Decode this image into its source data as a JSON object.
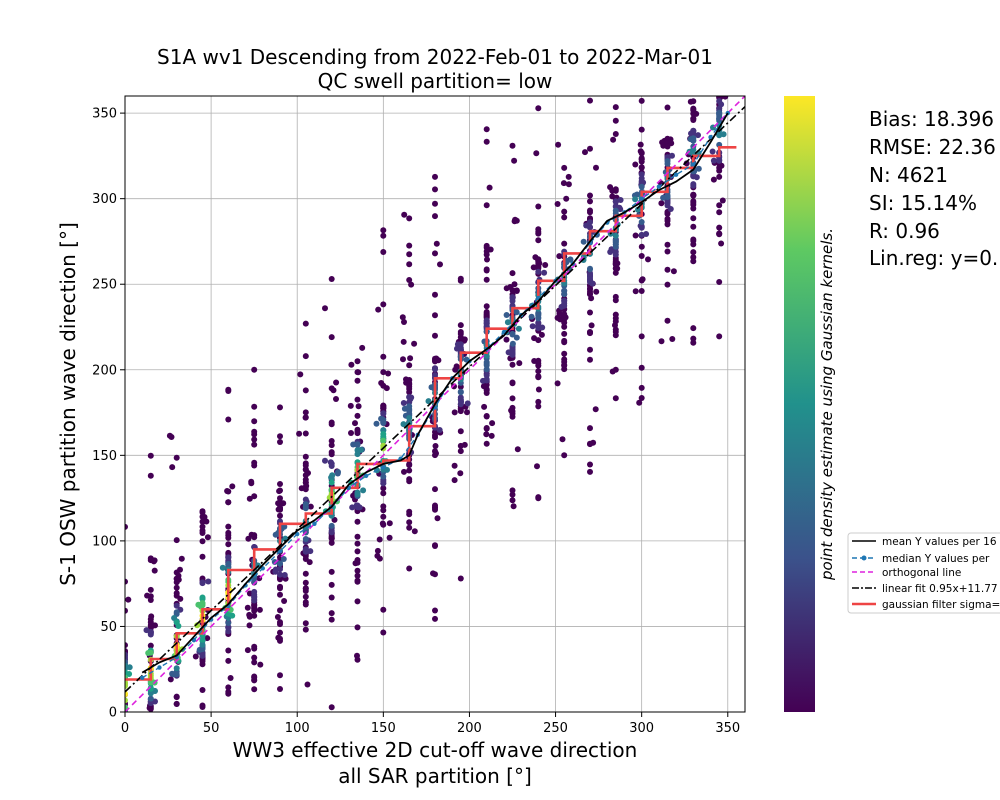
{
  "chart_data": {
    "type": "scatter",
    "title_line1": "S1A wv1 Descending from 2022-Feb-01 to 2022-Mar-01",
    "title_line2": "QC swell partition= low",
    "xlabel_line1": "WW3 effective 2D cut-off wave direction",
    "xlabel_line2": "all SAR partition [°]",
    "ylabel": "S-1 OSW partition wave direction [°]",
    "xlim": [
      0,
      360
    ],
    "ylim": [
      0,
      360
    ],
    "xticks": [
      "0",
      "50",
      "100",
      "150",
      "200",
      "250",
      "300",
      "350"
    ],
    "yticks": [
      "0",
      "50",
      "100",
      "150",
      "200",
      "250",
      "300",
      "350"
    ],
    "grid": true,
    "colorbar_label": "point density estimate using Gaussian kernels.",
    "colorbar_colors": [
      "#440154",
      "#3b528b",
      "#21918c",
      "#5ec962",
      "#fde725"
    ],
    "stats": [
      "Bias: 18.396",
      "RMSE: 22.36",
      "N: 4621",
      "SI: 15.14%",
      "R: 0.96",
      "Lin.reg: y=0."
    ],
    "legend": {
      "location": "lower-right outside",
      "entries": [
        {
          "label": "mean Y values per 16",
          "color": "#000000",
          "style": "solid"
        },
        {
          "label": "median Y values per",
          "color": "#1f77b4",
          "style": "dashed-dot-marker"
        },
        {
          "label": "orthogonal line",
          "color": "#dd22dd",
          "style": "dashed"
        },
        {
          "label": "linear fit 0.95x+11.77",
          "color": "#000000",
          "style": "dashdot"
        },
        {
          "label": "gaussian filter sigma=",
          "color": "#ee4444",
          "style": "solid-thick"
        }
      ]
    },
    "orthogonal_line": [
      [
        0,
        0
      ],
      [
        360,
        360
      ]
    ],
    "linear_fit": {
      "slope": 0.95,
      "intercept": 11.77
    },
    "mean_line": [
      [
        10,
        23
      ],
      [
        20,
        29
      ],
      [
        30,
        33
      ],
      [
        40,
        44
      ],
      [
        50,
        55
      ],
      [
        60,
        63
      ],
      [
        70,
        75
      ],
      [
        80,
        86
      ],
      [
        90,
        96
      ],
      [
        100,
        106
      ],
      [
        110,
        112
      ],
      [
        120,
        120
      ],
      [
        130,
        133
      ],
      [
        140,
        140
      ],
      [
        150,
        145
      ],
      [
        160,
        147
      ],
      [
        165,
        150
      ],
      [
        170,
        162
      ],
      [
        180,
        180
      ],
      [
        190,
        195
      ],
      [
        200,
        205
      ],
      [
        210,
        212
      ],
      [
        220,
        220
      ],
      [
        230,
        232
      ],
      [
        240,
        240
      ],
      [
        250,
        252
      ],
      [
        260,
        262
      ],
      [
        270,
        275
      ],
      [
        280,
        287
      ],
      [
        290,
        292
      ],
      [
        300,
        298
      ],
      [
        310,
        305
      ],
      [
        320,
        310
      ],
      [
        330,
        317
      ],
      [
        340,
        333
      ],
      [
        350,
        350
      ]
    ],
    "median_line": [
      [
        10,
        20
      ],
      [
        20,
        26
      ],
      [
        30,
        32
      ],
      [
        40,
        42
      ],
      [
        50,
        54
      ],
      [
        60,
        62
      ],
      [
        70,
        74
      ],
      [
        80,
        84
      ],
      [
        90,
        94
      ],
      [
        100,
        104
      ],
      [
        110,
        110
      ],
      [
        120,
        120
      ],
      [
        130,
        131
      ],
      [
        140,
        138
      ],
      [
        150,
        143
      ],
      [
        160,
        148
      ],
      [
        170,
        162
      ],
      [
        180,
        178
      ],
      [
        190,
        195
      ],
      [
        200,
        205
      ],
      [
        210,
        212
      ],
      [
        220,
        222
      ],
      [
        230,
        232
      ],
      [
        240,
        242
      ],
      [
        250,
        252
      ],
      [
        260,
        262
      ],
      [
        270,
        274
      ],
      [
        280,
        286
      ],
      [
        290,
        292
      ],
      [
        300,
        300
      ],
      [
        310,
        307
      ],
      [
        320,
        314
      ],
      [
        330,
        320
      ],
      [
        340,
        336
      ],
      [
        350,
        350
      ]
    ],
    "gaussian_filter_steps": [
      [
        0,
        19
      ],
      [
        15,
        19
      ],
      [
        15,
        31
      ],
      [
        30,
        31
      ],
      [
        30,
        46
      ],
      [
        45,
        46
      ],
      [
        45,
        60
      ],
      [
        60,
        60
      ],
      [
        60,
        83
      ],
      [
        75,
        83
      ],
      [
        75,
        95
      ],
      [
        90,
        95
      ],
      [
        90,
        110
      ],
      [
        105,
        110
      ],
      [
        105,
        116
      ],
      [
        120,
        116
      ],
      [
        120,
        131
      ],
      [
        135,
        131
      ],
      [
        135,
        145
      ],
      [
        150,
        145
      ],
      [
        150,
        147
      ],
      [
        165,
        147
      ],
      [
        165,
        167
      ],
      [
        180,
        167
      ],
      [
        180,
        195
      ],
      [
        195,
        195
      ],
      [
        195,
        210
      ],
      [
        210,
        210
      ],
      [
        210,
        224
      ],
      [
        225,
        224
      ],
      [
        225,
        236
      ],
      [
        240,
        236
      ],
      [
        240,
        252
      ],
      [
        255,
        252
      ],
      [
        255,
        268
      ],
      [
        270,
        268
      ],
      [
        270,
        281
      ],
      [
        285,
        281
      ],
      [
        285,
        290
      ],
      [
        300,
        290
      ],
      [
        300,
        304
      ],
      [
        315,
        304
      ],
      [
        315,
        318
      ],
      [
        330,
        318
      ],
      [
        330,
        325
      ],
      [
        345,
        325
      ],
      [
        345,
        330
      ],
      [
        355,
        330
      ]
    ],
    "scatter_columns": [
      0,
      15,
      30,
      45,
      60,
      75,
      90,
      105,
      120,
      135,
      150,
      165,
      180,
      195,
      210,
      225,
      240,
      255,
      270,
      285,
      300,
      315,
      330,
      345
    ]
  }
}
